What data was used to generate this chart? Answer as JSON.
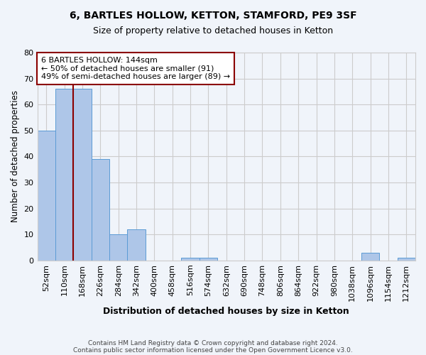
{
  "title1": "6, BARTLES HOLLOW, KETTON, STAMFORD, PE9 3SF",
  "title2": "Size of property relative to detached houses in Ketton",
  "xlabel": "Distribution of detached houses by size in Ketton",
  "ylabel": "Number of detached properties",
  "footer1": "Contains HM Land Registry data © Crown copyright and database right 2024.",
  "footer2": "Contains public sector information licensed under the Open Government Licence v3.0.",
  "bin_labels": [
    "52sqm",
    "110sqm",
    "168sqm",
    "226sqm",
    "284sqm",
    "342sqm",
    "400sqm",
    "458sqm",
    "516sqm",
    "574sqm",
    "632sqm",
    "690sqm",
    "748sqm",
    "806sqm",
    "864sqm",
    "922sqm",
    "980sqm",
    "1038sqm",
    "1096sqm",
    "1154sqm",
    "1212sqm"
  ],
  "bar_heights": [
    50,
    66,
    66,
    39,
    10,
    12,
    0,
    0,
    1,
    1,
    0,
    0,
    0,
    0,
    0,
    0,
    0,
    0,
    3,
    0,
    1
  ],
  "bar_color": "#aec6e8",
  "bar_edge_color": "#5b9bd5",
  "property_line_x": 1.5,
  "property_line_color": "#8b0000",
  "annotation_text": "6 BARTLES HOLLOW: 144sqm\n← 50% of detached houses are smaller (91)\n49% of semi-detached houses are larger (89) →",
  "annotation_box_color": "#ffffff",
  "annotation_border_color": "#8b0000",
  "ylim": [
    0,
    80
  ],
  "yticks": [
    0,
    10,
    20,
    30,
    40,
    50,
    60,
    70,
    80
  ],
  "bg_color": "#f0f4fa",
  "grid_color": "#cccccc"
}
